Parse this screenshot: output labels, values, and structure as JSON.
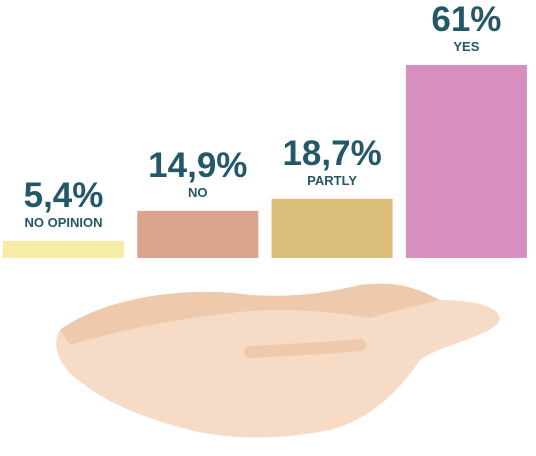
{
  "chart_data": {
    "type": "bar",
    "categories": [
      "NO OPINION",
      "NO",
      "PARTLY",
      "YES"
    ],
    "values": [
      5.4,
      14.9,
      18.7,
      61
    ],
    "value_labels": [
      "5,4%",
      "14,9%",
      "18,7%",
      "61%"
    ],
    "colors": [
      "#f7eca6",
      "#d9a58c",
      "#d9bd78",
      "#d68fbf"
    ]
  }
}
